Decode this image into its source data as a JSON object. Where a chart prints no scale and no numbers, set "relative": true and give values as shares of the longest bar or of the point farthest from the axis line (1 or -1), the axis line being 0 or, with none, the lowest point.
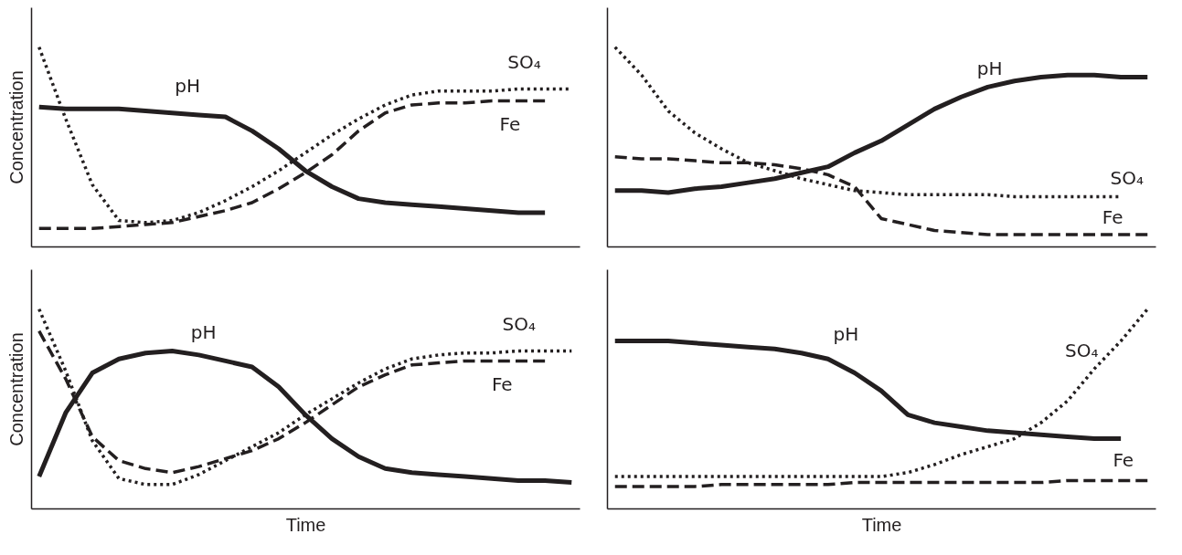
{
  "chart_data": [
    {
      "type": "line",
      "relative": true,
      "ylabel": "Concentration",
      "categories": [
        null,
        null,
        null,
        null,
        null,
        null,
        null,
        null,
        null,
        null,
        null,
        null,
        null,
        null,
        null,
        null,
        null,
        null,
        null,
        null,
        null
      ],
      "series": [
        {
          "name": "pH",
          "color": "#231f20",
          "line_style": "solid",
          "values": [
            0.7,
            0.69,
            0.69,
            0.69,
            0.68,
            0.67,
            0.66,
            0.65,
            0.58,
            0.49,
            0.38,
            0.3,
            0.24,
            0.22,
            0.21,
            0.2,
            0.19,
            0.18,
            0.17,
            0.17,
            null
          ]
        },
        {
          "name": "SO₄",
          "color": "#231f20",
          "line_style": "dotted",
          "values": [
            1,
            0.64,
            0.31,
            0.13,
            0.12,
            0.13,
            0.17,
            0.23,
            0.3,
            0.38,
            0.47,
            0.56,
            0.64,
            0.71,
            0.76,
            0.78,
            0.78,
            0.78,
            0.79,
            0.79,
            0.79
          ]
        },
        {
          "name": "Fe",
          "color": "#231f20",
          "line_style": "dashed",
          "values": [
            0.09,
            0.09,
            0.09,
            0.1,
            0.11,
            0.12,
            0.15,
            0.18,
            0.22,
            0.29,
            0.37,
            0.46,
            0.58,
            0.67,
            0.71,
            0.72,
            0.72,
            0.73,
            0.73,
            0.73,
            null
          ]
        }
      ]
    },
    {
      "type": "line",
      "relative": true,
      "categories": [
        null,
        null,
        null,
        null,
        null,
        null,
        null,
        null,
        null,
        null,
        null,
        null,
        null,
        null,
        null,
        null,
        null,
        null,
        null,
        null,
        null
      ],
      "series": [
        {
          "name": "pH",
          "color": "#231f20",
          "line_style": "solid",
          "values": [
            0.28,
            0.28,
            0.27,
            0.29,
            0.3,
            0.32,
            0.34,
            0.37,
            0.4,
            0.47,
            0.53,
            0.61,
            0.69,
            0.75,
            0.8,
            0.83,
            0.85,
            0.86,
            0.86,
            0.85,
            0.85
          ]
        },
        {
          "name": "SO₄",
          "color": "#231f20",
          "line_style": "dotted",
          "values": [
            1,
            0.86,
            0.68,
            0.57,
            0.49,
            0.42,
            0.38,
            0.34,
            0.31,
            0.28,
            0.27,
            0.26,
            0.26,
            0.26,
            0.26,
            0.25,
            0.25,
            0.25,
            0.25,
            0.25,
            null
          ]
        },
        {
          "name": "Fe",
          "color": "#231f20",
          "line_style": "dashed",
          "values": [
            0.45,
            0.44,
            0.44,
            0.43,
            0.42,
            0.42,
            0.41,
            0.39,
            0.36,
            0.3,
            0.14,
            0.11,
            0.08,
            0.07,
            0.06,
            0.06,
            0.06,
            0.06,
            0.06,
            0.06,
            0.06
          ]
        }
      ]
    },
    {
      "type": "line",
      "relative": true,
      "xlabel": "Time",
      "ylabel": "Concentration",
      "categories": [
        null,
        null,
        null,
        null,
        null,
        null,
        null,
        null,
        null,
        null,
        null,
        null,
        null,
        null,
        null,
        null,
        null,
        null,
        null,
        null,
        null
      ],
      "series": [
        {
          "name": "pH",
          "color": "#231f20",
          "line_style": "solid",
          "values": [
            0.16,
            0.48,
            0.68,
            0.75,
            0.78,
            0.79,
            0.77,
            0.74,
            0.71,
            0.61,
            0.47,
            0.35,
            0.26,
            0.2,
            0.18,
            0.17,
            0.16,
            0.15,
            0.14,
            0.14,
            0.13
          ]
        },
        {
          "name": "SO₄",
          "color": "#231f20",
          "line_style": "dotted",
          "values": [
            1,
            0.69,
            0.34,
            0.15,
            0.12,
            0.12,
            0.17,
            0.24,
            0.31,
            0.38,
            0.47,
            0.55,
            0.63,
            0.7,
            0.75,
            0.77,
            0.78,
            0.78,
            0.79,
            0.79,
            0.79
          ]
        },
        {
          "name": "Fe",
          "color": "#231f20",
          "line_style": "dashed",
          "values": [
            0.89,
            0.65,
            0.36,
            0.24,
            0.2,
            0.18,
            0.21,
            0.25,
            0.29,
            0.35,
            0.43,
            0.52,
            0.61,
            0.67,
            0.72,
            0.73,
            0.74,
            0.74,
            0.74,
            0.74,
            null
          ]
        }
      ]
    },
    {
      "type": "line",
      "relative": true,
      "xlabel": "Time",
      "categories": [
        null,
        null,
        null,
        null,
        null,
        null,
        null,
        null,
        null,
        null,
        null,
        null,
        null,
        null,
        null,
        null,
        null,
        null,
        null,
        null,
        null
      ],
      "series": [
        {
          "name": "pH",
          "color": "#231f20",
          "line_style": "solid",
          "values": [
            0.84,
            0.84,
            0.84,
            0.83,
            0.82,
            0.81,
            0.8,
            0.78,
            0.75,
            0.68,
            0.59,
            0.47,
            0.43,
            0.41,
            0.39,
            0.38,
            0.37,
            0.36,
            0.35,
            0.35,
            null
          ]
        },
        {
          "name": "SO₄",
          "color": "#231f20",
          "line_style": "dotted",
          "values": [
            0.16,
            0.16,
            0.16,
            0.16,
            0.16,
            0.16,
            0.16,
            0.16,
            0.16,
            0.16,
            0.16,
            0.18,
            0.22,
            0.27,
            0.31,
            0.35,
            0.43,
            0.54,
            0.7,
            0.84,
            1
          ]
        },
        {
          "name": "Fe",
          "color": "#231f20",
          "line_style": "dashed",
          "values": [
            0.11,
            0.11,
            0.11,
            0.11,
            0.12,
            0.12,
            0.12,
            0.12,
            0.12,
            0.13,
            0.13,
            0.13,
            0.13,
            0.13,
            0.13,
            0.13,
            0.13,
            0.14,
            0.14,
            0.14,
            0.14
          ]
        }
      ]
    }
  ]
}
